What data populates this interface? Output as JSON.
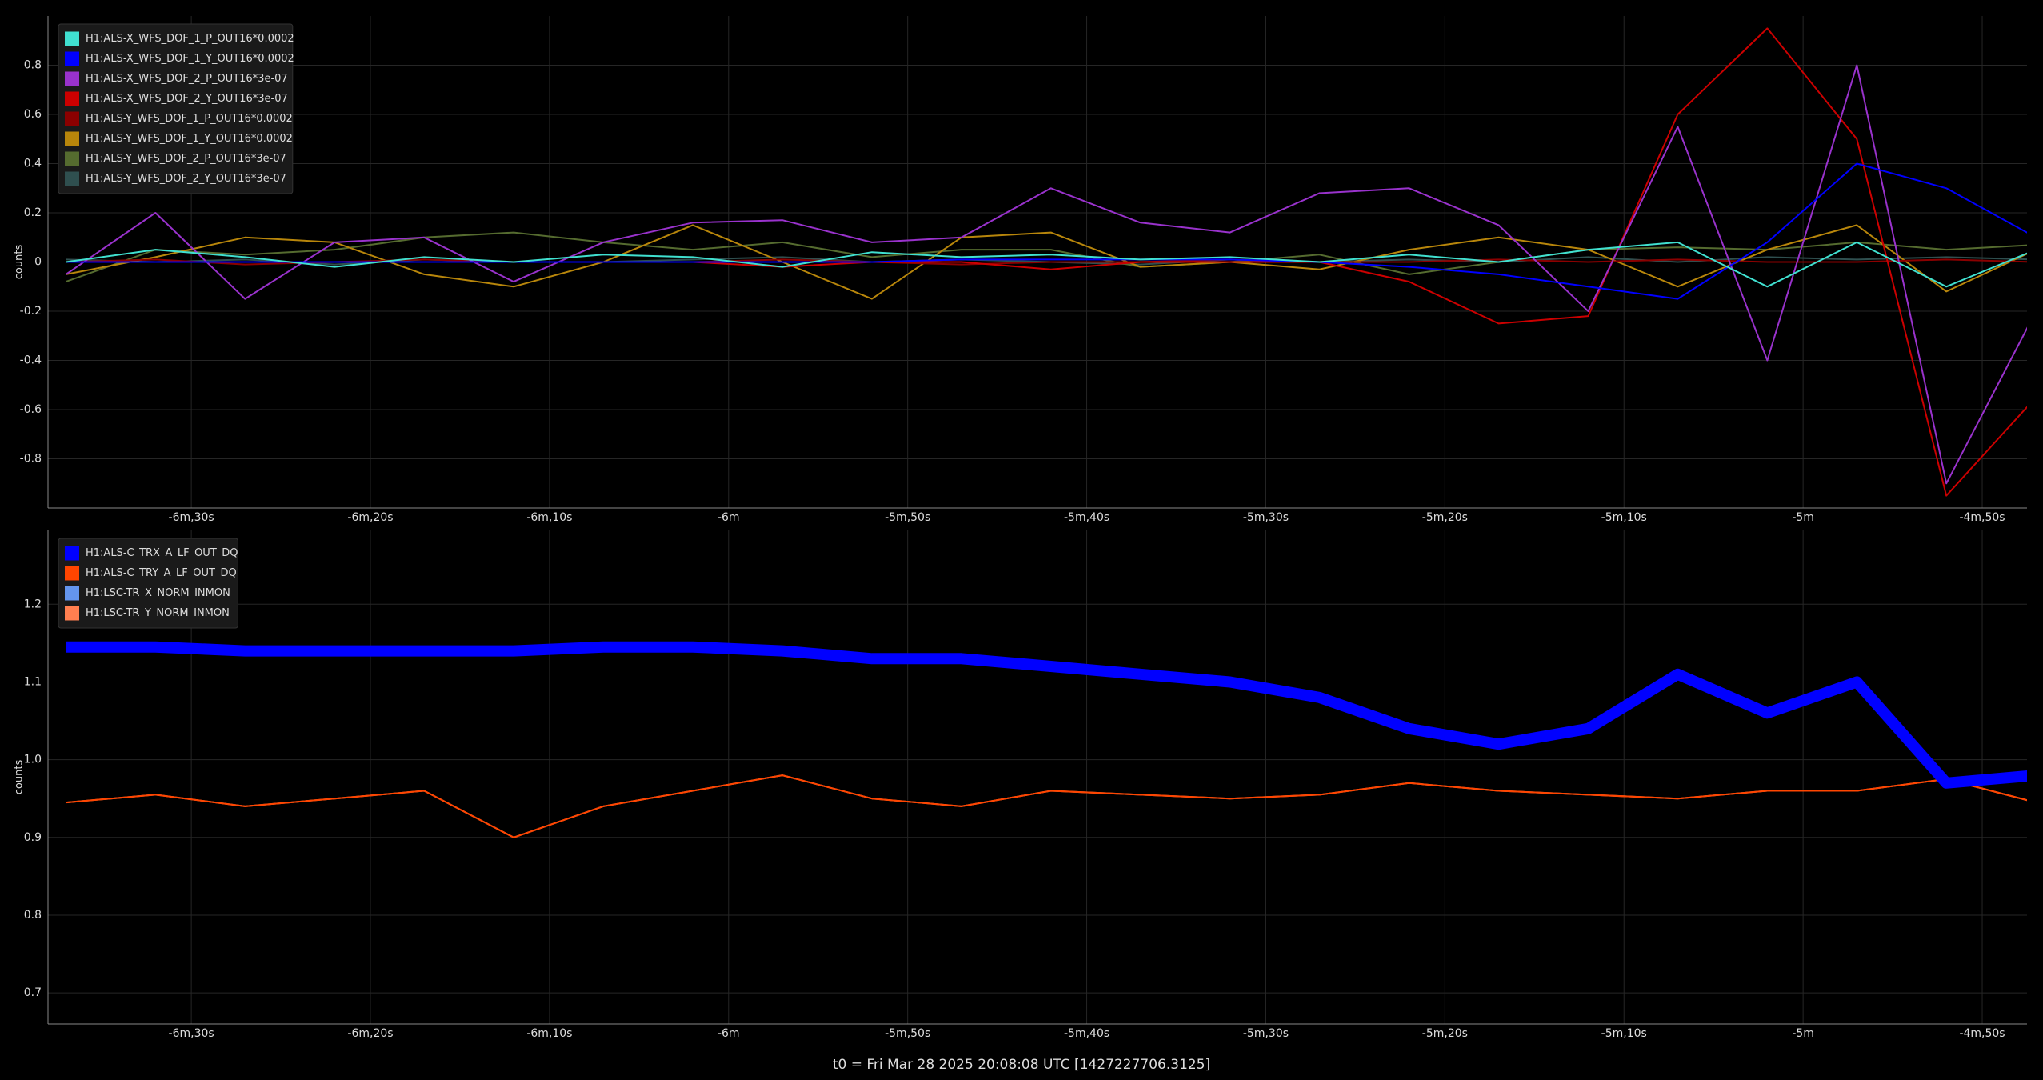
{
  "chart_data": [
    {
      "type": "line",
      "ylabel": "counts",
      "x": [
        -397,
        -392,
        -387,
        -382,
        -377,
        -372,
        -367,
        -362,
        -357,
        -352,
        -347,
        -342,
        -337,
        -332,
        -327,
        -322,
        -317,
        -312,
        -307,
        -302,
        -297,
        -292,
        -287
      ],
      "xlim": [
        -398,
        -287.5
      ],
      "xticks": [
        {
          "value": -390,
          "label": "-6m,30s"
        },
        {
          "value": -380,
          "label": "-6m,20s"
        },
        {
          "value": -370,
          "label": "-6m,10s"
        },
        {
          "value": -360,
          "label": "-6m"
        },
        {
          "value": -350,
          "label": "-5m,50s"
        },
        {
          "value": -340,
          "label": "-5m,40s"
        },
        {
          "value": -330,
          "label": "-5m,30s"
        },
        {
          "value": -320,
          "label": "-5m,20s"
        },
        {
          "value": -310,
          "label": "-5m,10s"
        },
        {
          "value": -300,
          "label": "-5m"
        },
        {
          "value": -290,
          "label": "-4m,50s"
        }
      ],
      "ylim": [
        -1,
        1
      ],
      "yticks": [
        -0.8,
        -0.6,
        -0.4,
        -0.2,
        0,
        0.2,
        0.4,
        0.6,
        0.8
      ],
      "grid": true,
      "legend": "top-left",
      "series": [
        {
          "name": "H1:ALS-X_WFS_DOF_1_P_OUT16*0.0002",
          "color": "#40e0d0",
          "values": [
            0.0,
            0.05,
            0.02,
            -0.02,
            0.02,
            0.0,
            0.03,
            0.02,
            -0.02,
            0.04,
            0.02,
            0.03,
            0.01,
            0.02,
            0.0,
            0.03,
            0.0,
            0.05,
            0.08,
            -0.1,
            0.08,
            -0.1,
            0.05
          ]
        },
        {
          "name": "H1:ALS-X_WFS_DOF_1_Y_OUT16*0.0002",
          "color": "#0000ff",
          "values": [
            0,
            0,
            0,
            0,
            0,
            0,
            0,
            0,
            0,
            0,
            0.01,
            0.01,
            0.01,
            0.01,
            0.0,
            -0.02,
            -0.05,
            -0.1,
            -0.15,
            0.08,
            0.4,
            0.3,
            0.1
          ]
        },
        {
          "name": "H1:ALS-X_WFS_DOF_2_P_OUT16*3e-07",
          "color": "#9932cc",
          "values": [
            -0.05,
            0.2,
            -0.15,
            0.08,
            0.1,
            -0.08,
            0.08,
            0.16,
            0.17,
            0.08,
            0.1,
            0.3,
            0.16,
            0.12,
            0.28,
            0.3,
            0.15,
            -0.2,
            0.55,
            -0.4,
            0.8,
            -0.9,
            -0.2
          ]
        },
        {
          "name": "H1:ALS-X_WFS_DOF_2_Y_OUT16*3e-07",
          "color": "#cc0000",
          "values": [
            0,
            0,
            0,
            0,
            0,
            0,
            0,
            0,
            -0.02,
            0,
            0,
            -0.03,
            0,
            0,
            0,
            -0.08,
            -0.25,
            -0.22,
            0.6,
            0.95,
            0.5,
            -0.95,
            -0.55
          ]
        },
        {
          "name": "H1:ALS-Y_WFS_DOF_1_P_OUT16*0.0002",
          "color": "#8b0000",
          "values": [
            0,
            0.01,
            -0.01,
            0,
            0.01,
            0,
            0,
            0,
            0.01,
            0,
            -0.01,
            0,
            0,
            0.01,
            0,
            0,
            0.01,
            0,
            0.01,
            0,
            0,
            0.01,
            0
          ]
        },
        {
          "name": "H1:ALS-Y_WFS_DOF_1_Y_OUT16*0.0002",
          "color": "#b8860b",
          "values": [
            -0.05,
            0.02,
            0.1,
            0.08,
            -0.05,
            -0.1,
            0.0,
            0.15,
            0.0,
            -0.15,
            0.1,
            0.12,
            -0.02,
            0.0,
            -0.03,
            0.05,
            0.1,
            0.05,
            -0.1,
            0.05,
            0.15,
            -0.12,
            0.05
          ]
        },
        {
          "name": "H1:ALS-Y_WFS_DOF_2_P_OUT16*3e-07",
          "color": "#556b2f",
          "values": [
            -0.08,
            0.05,
            0.03,
            0.05,
            0.1,
            0.12,
            0.08,
            0.05,
            0.08,
            0.02,
            0.05,
            0.05,
            -0.02,
            0.0,
            0.03,
            -0.05,
            0.0,
            0.05,
            0.06,
            0.05,
            0.08,
            0.05,
            0.07
          ]
        },
        {
          "name": "H1:ALS-Y_WFS_DOF_2_Y_OUT16*3e-07",
          "color": "#2f4f4f",
          "values": [
            0.01,
            0,
            0.01,
            -0.01,
            0.01,
            0,
            0,
            0.01,
            0.02,
            0,
            0.01,
            0,
            -0.01,
            0.01,
            0,
            0.01,
            0,
            0.02,
            0.0,
            0.02,
            0.01,
            0.02,
            0.01
          ]
        }
      ]
    },
    {
      "type": "line",
      "ylabel": "counts",
      "x": [
        -397,
        -392,
        -387,
        -382,
        -377,
        -372,
        -367,
        -362,
        -357,
        -352,
        -347,
        -342,
        -337,
        -332,
        -327,
        -322,
        -317,
        -312,
        -307,
        -302,
        -297,
        -292,
        -287
      ],
      "xlim": [
        -398,
        -287.5
      ],
      "xticks": [
        {
          "value": -390,
          "label": "-6m,30s"
        },
        {
          "value": -380,
          "label": "-6m,20s"
        },
        {
          "value": -370,
          "label": "-6m,10s"
        },
        {
          "value": -360,
          "label": "-6m"
        },
        {
          "value": -350,
          "label": "-5m,50s"
        },
        {
          "value": -340,
          "label": "-5m,40s"
        },
        {
          "value": -330,
          "label": "-5m,30s"
        },
        {
          "value": -320,
          "label": "-5m,20s"
        },
        {
          "value": -310,
          "label": "-5m,10s"
        },
        {
          "value": -300,
          "label": "-5m"
        },
        {
          "value": -290,
          "label": "-4m,50s"
        }
      ],
      "ylim": [
        0.66,
        1.295
      ],
      "yticks": [
        0.7,
        0.8,
        0.9,
        {
          "value": 1,
          "label": "1.0"
        },
        1.1,
        1.2
      ],
      "grid": true,
      "legend": "top-left",
      "series": [
        {
          "name": "H1:ALS-C_TRX_A_LF_OUT_DQ",
          "color": "#0000ff",
          "values": [
            1.145,
            1.145,
            1.14,
            1.14,
            1.14,
            1.14,
            1.145,
            1.145,
            1.14,
            1.13,
            1.13,
            1.12,
            1.11,
            1.1,
            1.08,
            1.04,
            1.02,
            1.04,
            1.11,
            1.06,
            1.1,
            0.97,
            0.98
          ]
        },
        {
          "name": "H1:ALS-C_TRY_A_LF_OUT_DQ",
          "color": "#ff4500",
          "values": [
            0.945,
            0.955,
            0.94,
            0.95,
            0.96,
            0.9,
            0.94,
            0.96,
            0.98,
            0.95,
            0.94,
            0.96,
            0.955,
            0.95,
            0.955,
            0.97,
            0.96,
            0.955,
            0.95,
            0.96,
            0.96,
            0.975,
            0.945
          ]
        },
        {
          "name": "H1:LSC-TR_X_NORM_INMON",
          "color": "#6495ed",
          "values": [
            1.145,
            1.145,
            1.14,
            1.14,
            1.14,
            1.14,
            1.145,
            1.145,
            1.14,
            1.13,
            1.13,
            1.12,
            1.11,
            1.1,
            1.08,
            1.04,
            1.02,
            1.04,
            1.11,
            1.06,
            1.1,
            0.97,
            0.98
          ]
        },
        {
          "name": "H1:LSC-TR_Y_NORM_INMON",
          "color": "#ff7f50",
          "values": [
            0.945,
            0.955,
            0.94,
            0.95,
            0.96,
            0.9,
            0.94,
            0.96,
            0.98,
            0.95,
            0.94,
            0.96,
            0.955,
            0.95,
            0.955,
            0.97,
            0.96,
            0.955,
            0.95,
            0.96,
            0.96,
            0.975,
            0.945
          ]
        }
      ]
    }
  ],
  "footer": "t0 = Fri Mar 28 2025 20:08:08 UTC [1427227706.3125]"
}
